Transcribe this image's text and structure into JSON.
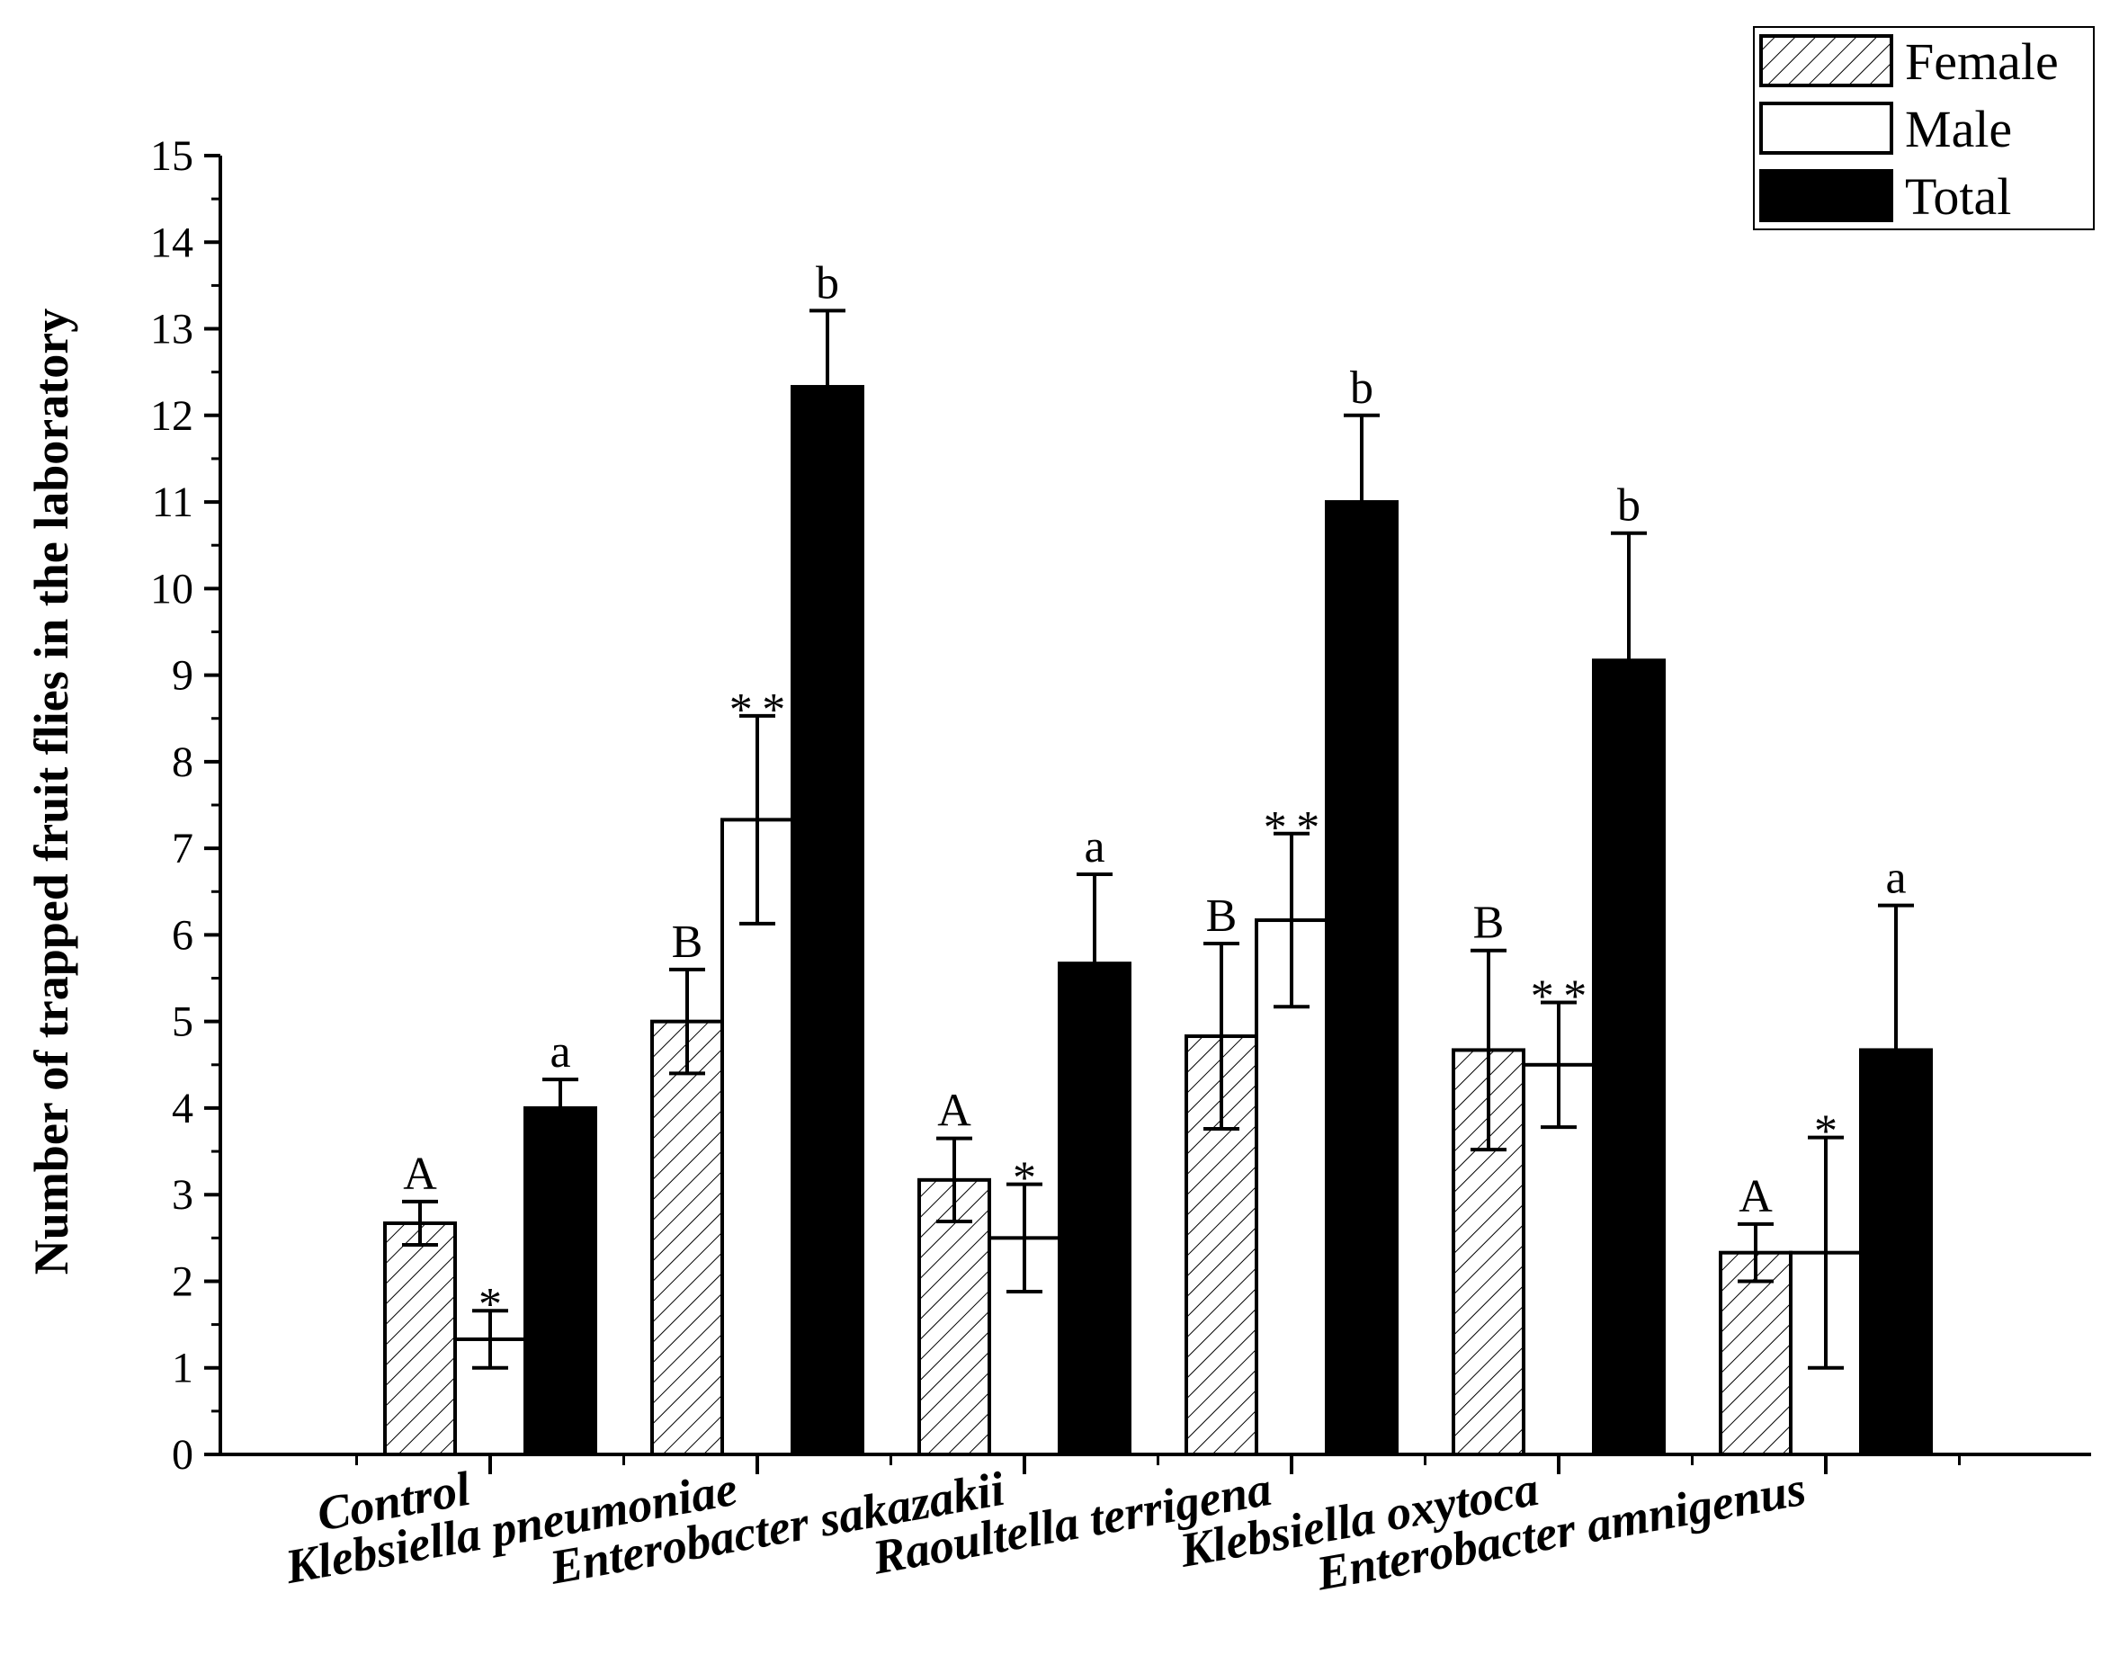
{
  "chart_data": {
    "type": "bar",
    "ylabel": "Number of trapped fruit flies in the laboratory",
    "xlabel": "",
    "ylim": [
      0,
      15
    ],
    "yticks": [
      0,
      1,
      2,
      3,
      4,
      5,
      6,
      7,
      8,
      9,
      10,
      11,
      12,
      13,
      14,
      15
    ],
    "categories": [
      "Control",
      "Klebsiella pneumoniae",
      "Enterobacter sakazakii",
      "Raoultella terrigena",
      "Klebsiella oxytoca",
      "Enterobacter amnigenus"
    ],
    "legend_position": "top-right",
    "grid": false,
    "series": [
      {
        "name": "Female",
        "pattern": "hatched",
        "values": [
          2.67,
          5.0,
          3.17,
          4.83,
          4.67,
          2.33
        ],
        "errors": [
          0.25,
          0.6,
          0.48,
          1.07,
          1.15,
          0.33
        ]
      },
      {
        "name": "Male",
        "pattern": "white",
        "values": [
          1.33,
          7.33,
          2.5,
          6.17,
          4.5,
          2.33
        ],
        "errors": [
          0.33,
          1.2,
          0.62,
          1.0,
          0.72,
          1.33
        ]
      },
      {
        "name": "Total",
        "pattern": "black",
        "values": [
          4.0,
          12.33,
          5.67,
          11.0,
          9.17,
          4.67
        ],
        "errors": [
          0.33,
          0.88,
          1.03,
          1.0,
          1.47,
          1.67
        ]
      }
    ],
    "annotations": {
      "Female": [
        "A",
        "B",
        "A",
        "B",
        "B",
        "A"
      ],
      "Male": [
        "*",
        "**",
        "*",
        "**",
        "**",
        "*"
      ],
      "Total": [
        "a",
        "b",
        "a",
        "b",
        "b",
        "a"
      ]
    }
  }
}
